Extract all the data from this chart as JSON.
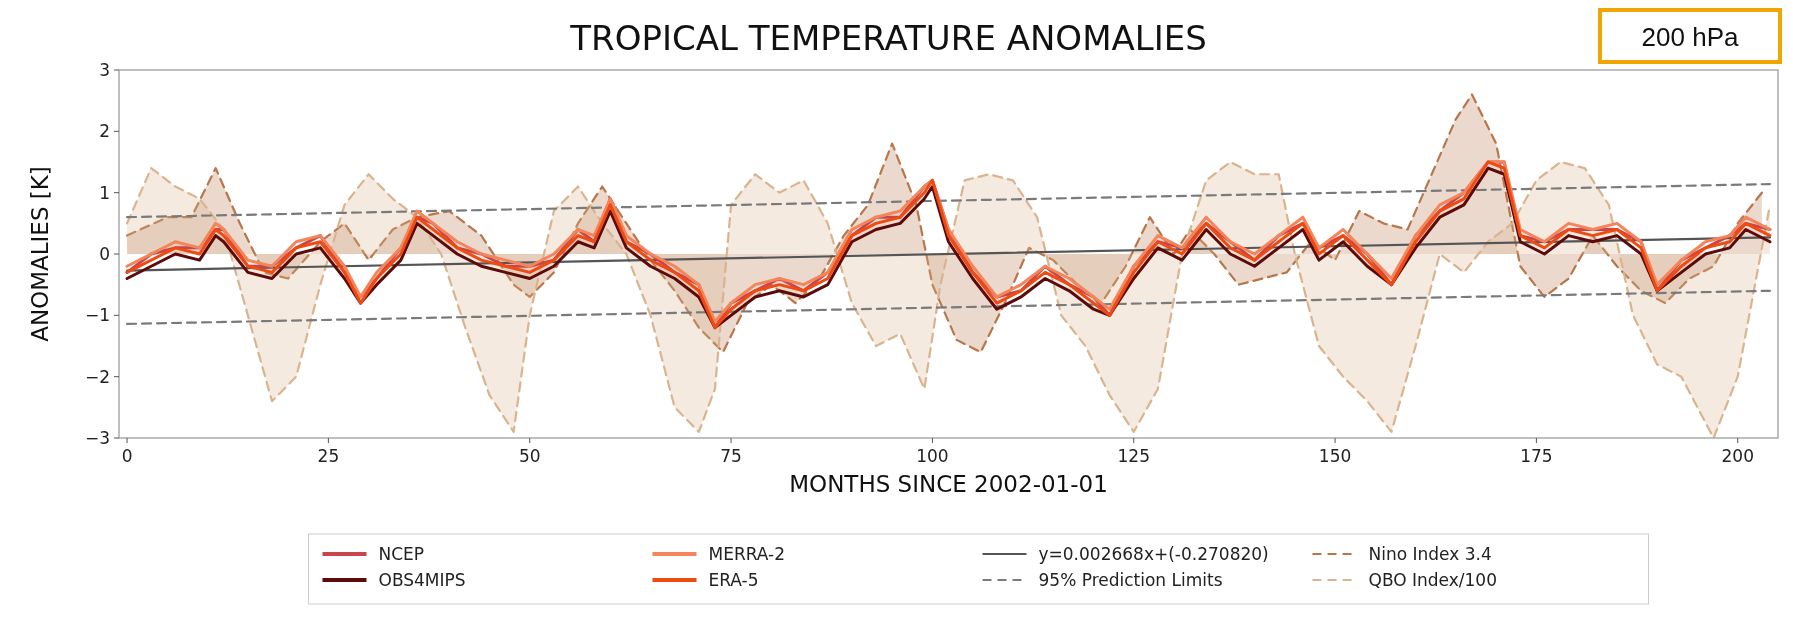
{
  "chart_data": {
    "type": "line",
    "title": "TROPICAL TEMPERATURE ANOMALIES",
    "xlabel": "MONTHS SINCE 2002-01-01",
    "ylabel": "ANOMALIES [K]",
    "annotations": [
      "200 hPa"
    ],
    "xlim": [
      -1,
      205
    ],
    "ylim": [
      -3,
      3
    ],
    "xticks": [
      0,
      25,
      50,
      75,
      100,
      125,
      150,
      175,
      200
    ],
    "yticks": [
      -3,
      -2,
      -1,
      0,
      1,
      2,
      3
    ],
    "grid": false,
    "legend": "bottom",
    "line_style": "solid",
    "marker": "none",
    "x": [
      0,
      3,
      6,
      9,
      11,
      12,
      15,
      18,
      21,
      24,
      27,
      29,
      31,
      34,
      36,
      38,
      41,
      44,
      47,
      50,
      53,
      56,
      58,
      60,
      62,
      65,
      68,
      71,
      73,
      75,
      78,
      81,
      84,
      87,
      90,
      93,
      96,
      99,
      100,
      102,
      105,
      108,
      111,
      114,
      117,
      120,
      122,
      125,
      128,
      131,
      134,
      137,
      140,
      143,
      146,
      148,
      151,
      154,
      157,
      160,
      163,
      166,
      169,
      171,
      173,
      176,
      179,
      182,
      185,
      188,
      190,
      193,
      196,
      199,
      201,
      204
    ],
    "series": [
      {
        "name": "NCEP",
        "color": "#c8454c",
        "values": [
          -0.3,
          0.0,
          0.1,
          0.1,
          0.4,
          0.4,
          -0.2,
          -0.2,
          0.1,
          0.3,
          -0.3,
          -0.7,
          -0.4,
          0.1,
          0.6,
          0.5,
          0.1,
          0.0,
          -0.2,
          -0.2,
          -0.1,
          0.4,
          0.2,
          0.9,
          0.2,
          0.0,
          -0.3,
          -0.5,
          -1.2,
          -0.8,
          -0.6,
          -0.4,
          -0.6,
          -0.3,
          0.3,
          0.6,
          0.6,
          1.1,
          1.2,
          0.4,
          -0.3,
          -0.7,
          -0.6,
          -0.2,
          -0.5,
          -0.7,
          -1.0,
          -0.2,
          0.2,
          0.1,
          0.5,
          0.2,
          -0.1,
          0.3,
          0.5,
          0.1,
          0.3,
          0.0,
          -0.5,
          0.3,
          0.7,
          1.0,
          1.5,
          1.5,
          0.3,
          0.2,
          0.4,
          0.4,
          0.4,
          0.2,
          -0.6,
          -0.1,
          0.1,
          0.3,
          0.5,
          0.4
        ]
      },
      {
        "name": "OBS4MIPS",
        "color": "#5c0a0a",
        "values": [
          -0.4,
          -0.2,
          0.0,
          -0.1,
          0.3,
          0.2,
          -0.3,
          -0.4,
          0.0,
          0.1,
          -0.4,
          -0.8,
          -0.5,
          -0.1,
          0.5,
          0.3,
          0.0,
          -0.2,
          -0.3,
          -0.4,
          -0.2,
          0.2,
          0.1,
          0.7,
          0.1,
          -0.2,
          -0.4,
          -0.7,
          -1.2,
          -1.0,
          -0.7,
          -0.6,
          -0.7,
          -0.5,
          0.2,
          0.4,
          0.5,
          0.9,
          1.1,
          0.2,
          -0.4,
          -0.9,
          -0.7,
          -0.4,
          -0.6,
          -0.9,
          -1.0,
          -0.4,
          0.1,
          -0.1,
          0.4,
          0.0,
          -0.2,
          0.1,
          0.4,
          -0.1,
          0.2,
          -0.2,
          -0.5,
          0.1,
          0.6,
          0.8,
          1.4,
          1.3,
          0.2,
          0.0,
          0.3,
          0.2,
          0.3,
          0.0,
          -0.6,
          -0.3,
          0.0,
          0.1,
          0.4,
          0.2
        ]
      },
      {
        "name": "MERRA-2",
        "color": "#f4845a",
        "values": [
          -0.2,
          0.0,
          0.2,
          0.1,
          0.5,
          0.4,
          -0.1,
          -0.2,
          0.2,
          0.3,
          -0.2,
          -0.7,
          -0.3,
          0.1,
          0.7,
          0.5,
          0.2,
          0.0,
          -0.1,
          -0.2,
          0.0,
          0.4,
          0.3,
          0.9,
          0.3,
          0.0,
          -0.2,
          -0.5,
          -1.1,
          -0.8,
          -0.5,
          -0.4,
          -0.5,
          -0.3,
          0.4,
          0.6,
          0.7,
          1.1,
          1.2,
          0.4,
          -0.2,
          -0.7,
          -0.5,
          -0.2,
          -0.4,
          -0.7,
          -0.9,
          -0.2,
          0.3,
          0.1,
          0.6,
          0.2,
          0.0,
          0.3,
          0.6,
          0.1,
          0.4,
          0.0,
          -0.4,
          0.3,
          0.8,
          1.0,
          1.5,
          1.5,
          0.4,
          0.2,
          0.5,
          0.4,
          0.5,
          0.2,
          -0.5,
          -0.1,
          0.2,
          0.3,
          0.6,
          0.4
        ]
      },
      {
        "name": "ERA-5",
        "color": "#ee4a12",
        "values": [
          -0.3,
          -0.1,
          0.1,
          0.0,
          0.4,
          0.3,
          -0.2,
          -0.3,
          0.1,
          0.2,
          -0.3,
          -0.8,
          -0.4,
          0.0,
          0.6,
          0.4,
          0.1,
          -0.1,
          -0.2,
          -0.3,
          -0.1,
          0.3,
          0.2,
          0.8,
          0.2,
          -0.1,
          -0.3,
          -0.6,
          -1.2,
          -0.9,
          -0.6,
          -0.5,
          -0.6,
          -0.4,
          0.3,
          0.5,
          0.6,
          1.0,
          1.2,
          0.3,
          -0.3,
          -0.8,
          -0.6,
          -0.3,
          -0.5,
          -0.8,
          -1.0,
          -0.3,
          0.2,
          0.0,
          0.5,
          0.1,
          -0.1,
          0.2,
          0.5,
          0.0,
          0.3,
          -0.1,
          -0.5,
          0.2,
          0.7,
          0.9,
          1.5,
          1.4,
          0.3,
          0.1,
          0.4,
          0.3,
          0.4,
          0.1,
          -0.6,
          -0.2,
          0.1,
          0.2,
          0.5,
          0.3
        ]
      },
      {
        "name": "y=0.002668x+(-0.270820)",
        "color": "#555555",
        "x": [
          0,
          204
        ],
        "values": [
          -0.27,
          0.27
        ]
      },
      {
        "name": "95% Prediction Limits",
        "color": "#7a7a7a",
        "line_style": "dashed",
        "x": [
          0,
          204
        ],
        "values": [
          0.6,
          1.14
        ]
      },
      {
        "color": "#7a7a7a",
        "line_style": "dashed",
        "x": [
          0,
          204
        ],
        "values": [
          -1.14,
          -0.6
        ]
      },
      {
        "name": "Nino Index 3.4",
        "type": "area",
        "color": "#b8764a",
        "line_style": "dashed",
        "x": [
          0,
          5,
          8,
          11,
          14,
          17,
          20,
          24,
          27,
          30,
          33,
          36,
          40,
          44,
          48,
          50,
          53,
          56,
          59,
          62,
          65,
          68,
          71,
          74,
          77,
          80,
          83,
          86,
          89,
          92,
          95,
          98,
          100,
          103,
          106,
          109,
          112,
          115,
          118,
          121,
          124,
          127,
          130,
          132,
          135,
          138,
          141,
          144,
          147,
          150,
          153,
          156,
          159,
          162,
          165,
          167,
          170,
          173,
          176,
          179,
          182,
          185,
          188,
          191,
          194,
          197,
          200,
          203
        ],
        "values": [
          0.3,
          0.6,
          0.6,
          1.4,
          0.5,
          -0.3,
          -0.4,
          0.2,
          0.5,
          -0.1,
          0.4,
          0.6,
          0.7,
          0.3,
          -0.5,
          -0.7,
          -0.3,
          0.5,
          1.1,
          0.5,
          -0.1,
          -0.6,
          -1.2,
          -1.6,
          -0.8,
          -0.5,
          -0.8,
          -0.4,
          0.3,
          0.8,
          1.8,
          0.8,
          -0.5,
          -1.4,
          -1.6,
          -0.8,
          0.1,
          -0.1,
          -0.5,
          -0.8,
          -0.2,
          0.6,
          0.0,
          0.4,
          0.0,
          -0.5,
          -0.4,
          -0.3,
          0.2,
          -0.1,
          0.7,
          0.5,
          0.4,
          1.3,
          2.2,
          2.6,
          1.8,
          -0.2,
          -0.7,
          -0.4,
          0.3,
          -0.2,
          -0.6,
          -0.8,
          -0.4,
          -0.2,
          0.5,
          1.0
        ]
      },
      {
        "name": "QBO Index/100",
        "type": "area",
        "color": "#d9b48e",
        "line_style": "dashed",
        "x": [
          0,
          3,
          6,
          9,
          12,
          15,
          18,
          21,
          24,
          27,
          30,
          33,
          36,
          39,
          42,
          45,
          48,
          50,
          53,
          56,
          59,
          62,
          65,
          68,
          71,
          73,
          75,
          78,
          81,
          84,
          87,
          90,
          93,
          96,
          99,
          101,
          104,
          107,
          110,
          113,
          116,
          119,
          122,
          125,
          128,
          131,
          134,
          137,
          140,
          143,
          145,
          148,
          151,
          154,
          157,
          160,
          163,
          166,
          169,
          172,
          175,
          178,
          181,
          184,
          187,
          190,
          193,
          197,
          200,
          204
        ],
        "values": [
          0.5,
          1.4,
          1.1,
          0.9,
          0.4,
          -1.0,
          -2.4,
          -2.0,
          -0.5,
          0.8,
          1.3,
          0.9,
          0.6,
          0.0,
          -1.2,
          -2.3,
          -2.9,
          -1.0,
          0.7,
          1.1,
          0.5,
          0.0,
          -1.0,
          -2.5,
          -2.9,
          -2.2,
          0.8,
          1.3,
          1.0,
          1.2,
          0.5,
          -0.8,
          -1.5,
          -1.3,
          -2.2,
          -0.5,
          1.2,
          1.3,
          1.2,
          0.6,
          -1.0,
          -1.5,
          -2.3,
          -2.9,
          -2.2,
          0.0,
          1.2,
          1.5,
          1.3,
          1.3,
          0.0,
          -1.5,
          -2.0,
          -2.4,
          -2.9,
          -1.5,
          0.0,
          -0.3,
          0.2,
          0.5,
          1.2,
          1.5,
          1.4,
          0.8,
          -1.0,
          -1.8,
          -2.0,
          -3.0,
          -2.0,
          0.8
        ]
      }
    ]
  }
}
